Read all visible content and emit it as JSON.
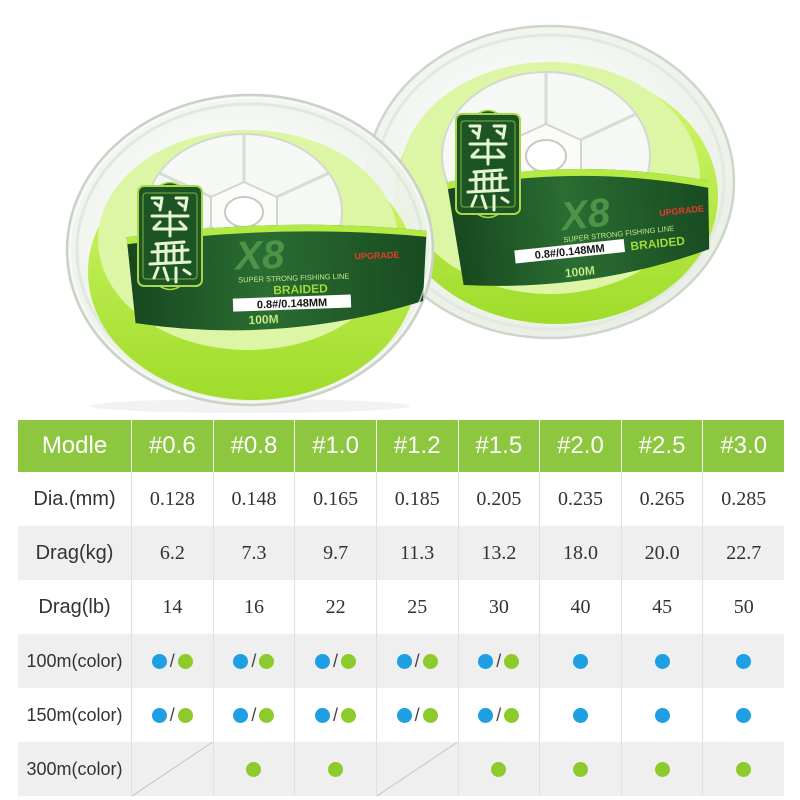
{
  "product_label": {
    "brand_logo": "翠舞",
    "model": "X8",
    "tagline": "SUPER STRONG FISHING LINE",
    "line_type": "BRAIDED",
    "spec": "0.8#/0.148MM",
    "length": "100M",
    "badge": "UPGRADE"
  },
  "spec_table": {
    "header_label": "Modle",
    "columns": [
      "#0.6",
      "#0.8",
      "#1.0",
      "#1.2",
      "#1.5",
      "#2.0",
      "#2.5",
      "#3.0"
    ],
    "rows": [
      {
        "label": "Dia.(mm)",
        "values": [
          "0.128",
          "0.148",
          "0.165",
          "0.185",
          "0.205",
          "0.235",
          "0.265",
          "0.285"
        ]
      },
      {
        "label": "Drag(kg)",
        "values": [
          "6.2",
          "7.3",
          "9.7",
          "11.3",
          "13.2",
          "18.0",
          "20.0",
          "22.7"
        ]
      },
      {
        "label": "Drag(lb)",
        "values": [
          "14",
          "16",
          "22",
          "25",
          "30",
          "40",
          "45",
          "50"
        ]
      }
    ],
    "color_rows": [
      {
        "label": "100m(color)",
        "availability": [
          [
            "blue",
            "green"
          ],
          [
            "blue",
            "green"
          ],
          [
            "blue",
            "green"
          ],
          [
            "blue",
            "green"
          ],
          [
            "blue",
            "green"
          ],
          [
            "blue"
          ],
          [
            "blue"
          ],
          [
            "blue"
          ]
        ]
      },
      {
        "label": "150m(color)",
        "availability": [
          [
            "blue",
            "green"
          ],
          [
            "blue",
            "green"
          ],
          [
            "blue",
            "green"
          ],
          [
            "blue",
            "green"
          ],
          [
            "blue",
            "green"
          ],
          [
            "blue"
          ],
          [
            "blue"
          ],
          [
            "blue"
          ]
        ]
      },
      {
        "label": "300m(color)",
        "availability": [
          [],
          [
            "green"
          ],
          [
            "green"
          ],
          [],
          [
            "green"
          ],
          [
            "green"
          ],
          [
            "green"
          ],
          [
            "green"
          ]
        ]
      }
    ],
    "separator": "/",
    "colors": {
      "header_bg": "#8dc63f",
      "row_alt": "#efefef",
      "blue": "#1e9ee3",
      "green": "#8dcb2c"
    }
  }
}
